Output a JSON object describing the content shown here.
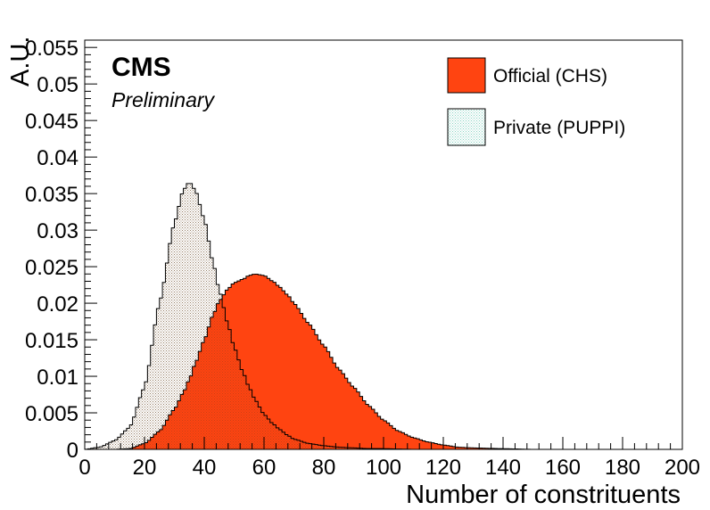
{
  "chart_data": {
    "type": "area",
    "title": "",
    "xlabel": "Number of constrituents",
    "ylabel": "A.U.",
    "xlim": [
      0,
      200
    ],
    "ylim": [
      0,
      0.056
    ],
    "x_ticks": [
      "0",
      "20",
      "40",
      "60",
      "80",
      "100",
      "120",
      "140",
      "160",
      "180",
      "200"
    ],
    "y_ticks": [
      "0",
      "0.005",
      "0.01",
      "0.015",
      "0.02",
      "0.025",
      "0.03",
      "0.035",
      "0.04",
      "0.045",
      "0.05",
      "0.055"
    ],
    "bin_width": 1,
    "x": [
      0,
      5,
      10,
      15,
      20,
      25,
      30,
      33,
      35,
      37,
      40,
      43,
      45,
      48,
      50,
      53,
      55,
      57,
      60,
      63,
      65,
      68,
      70,
      75,
      80,
      85,
      90,
      95,
      100,
      105,
      110,
      115,
      120,
      125,
      130,
      140,
      150
    ],
    "series": [
      {
        "name": "Official (CHS)",
        "color": "#ff4411",
        "style": "solid",
        "values": [
          0,
          0,
          0,
          0.0001,
          0.0008,
          0.0025,
          0.0055,
          0.0078,
          0.0096,
          0.0118,
          0.015,
          0.0185,
          0.0203,
          0.022,
          0.0228,
          0.0233,
          0.0238,
          0.024,
          0.0238,
          0.023,
          0.0223,
          0.0211,
          0.02,
          0.0172,
          0.0142,
          0.011,
          0.0085,
          0.006,
          0.004,
          0.0025,
          0.0016,
          0.001,
          0.0006,
          0.0003,
          0.0002,
          0.0001,
          0
        ]
      },
      {
        "name": "Private (PUPPI)",
        "color": "#8ad4c4",
        "style": "hatched",
        "values": [
          0,
          0.0003,
          0.0012,
          0.003,
          0.0085,
          0.02,
          0.031,
          0.0355,
          0.0366,
          0.0355,
          0.0315,
          0.0255,
          0.0218,
          0.017,
          0.014,
          0.0105,
          0.0085,
          0.0068,
          0.0048,
          0.0035,
          0.0028,
          0.0019,
          0.0014,
          0.0008,
          0.0005,
          0.0003,
          0.0002,
          0.0001,
          0.0001,
          5e-05,
          0,
          0,
          0,
          0,
          0,
          0,
          0
        ]
      }
    ],
    "legend_position": "top-right",
    "annotations": [
      "CMS",
      "Preliminary"
    ]
  },
  "labels": {
    "cms": "CMS",
    "preliminary": "Preliminary"
  },
  "legend": [
    {
      "label": "Official (CHS)",
      "color": "#ff4411",
      "style": "solid"
    },
    {
      "label": "Private (PUPPI)",
      "color": "#8ad4c4",
      "style": "hatched"
    }
  ]
}
